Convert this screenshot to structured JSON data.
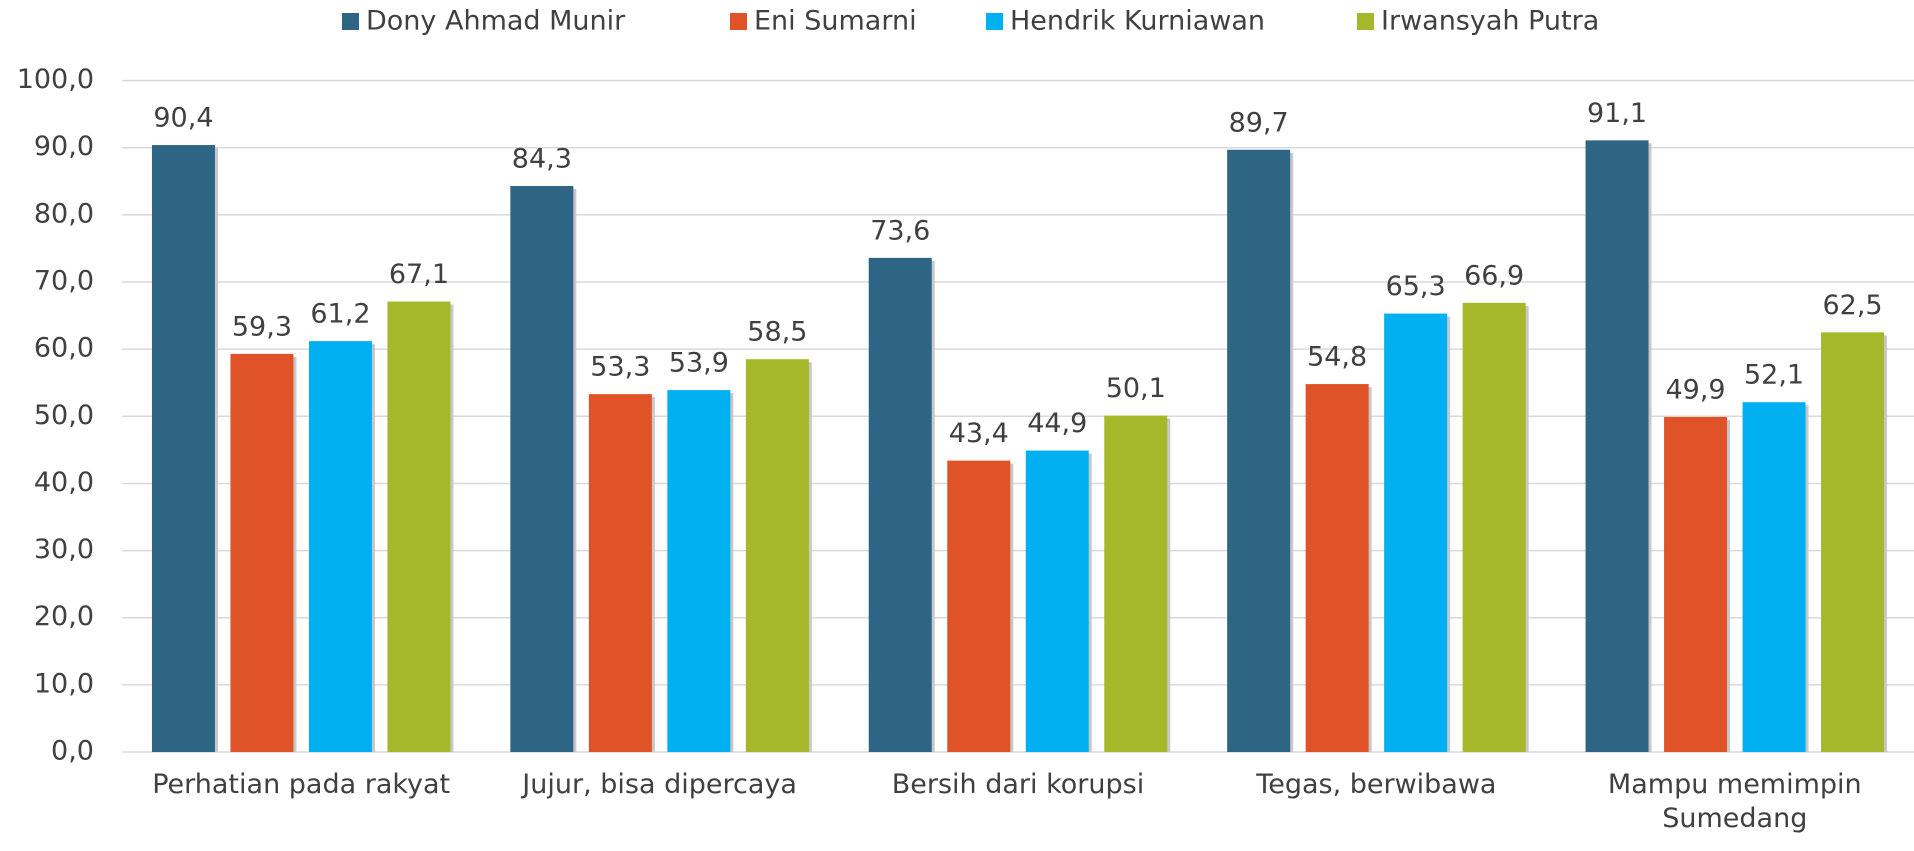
{
  "chart_data": {
    "type": "bar",
    "categories": [
      "Perhatian pada rakyat",
      "Jujur, bisa dipercaya",
      "Bersih dari korupsi",
      "Tegas, berwibawa",
      "Mampu memimpin Sumedang"
    ],
    "series": [
      {
        "name": "Dony Ahmad Munir",
        "color": "#2e6484",
        "values": [
          90.4,
          84.3,
          73.6,
          89.7,
          91.1
        ],
        "value_labels": [
          "90,4",
          "84,3",
          "73,6",
          "89,7",
          "91,1"
        ]
      },
      {
        "name": "Eni Sumarni",
        "color": "#e05328",
        "values": [
          59.3,
          53.3,
          43.4,
          54.8,
          49.9
        ],
        "value_labels": [
          "59,3",
          "53,3",
          "43,4",
          "54,8",
          "49,9"
        ]
      },
      {
        "name": "Hendrik Kurniawan",
        "color": "#00b0f0",
        "values": [
          61.2,
          53.9,
          44.9,
          65.3,
          52.1
        ],
        "value_labels": [
          "61,2",
          "53,9",
          "44,9",
          "65,3",
          "52,1"
        ]
      },
      {
        "name": "Irwansyah Putra",
        "color": "#a5b829",
        "values": [
          67.1,
          58.5,
          50.1,
          66.9,
          62.5
        ],
        "value_labels": [
          "67,1",
          "58,5",
          "50,1",
          "66,9",
          "62,5"
        ]
      }
    ],
    "ylim": [
      0,
      100
    ],
    "yticks": [
      {
        "value": 0,
        "label": "0,0"
      },
      {
        "value": 10,
        "label": "10,0"
      },
      {
        "value": 20,
        "label": "20,0"
      },
      {
        "value": 30,
        "label": "30,0"
      },
      {
        "value": 40,
        "label": "40,0"
      },
      {
        "value": 50,
        "label": "50,0"
      },
      {
        "value": 60,
        "label": "60,0"
      },
      {
        "value": 70,
        "label": "70,0"
      },
      {
        "value": 80,
        "label": "80,0"
      },
      {
        "value": 90,
        "label": "90,0"
      },
      {
        "value": 100,
        "label": "100,0"
      }
    ],
    "grid": true,
    "legend": "top"
  }
}
